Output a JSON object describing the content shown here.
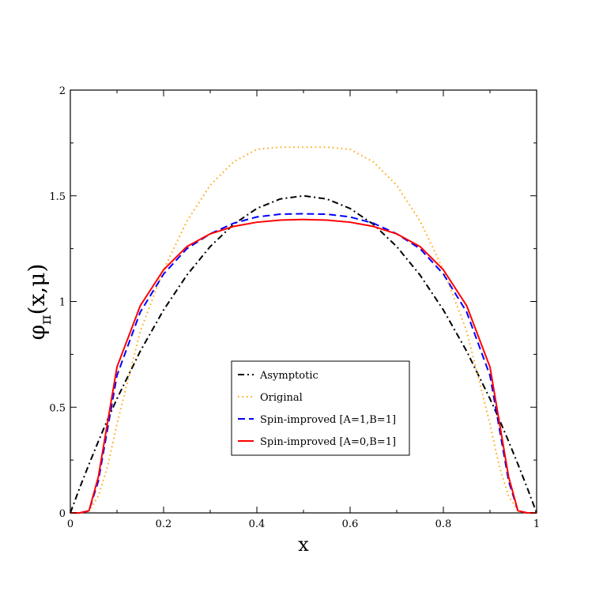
{
  "chart_data": {
    "type": "line",
    "xlabel": "x",
    "ylabel": {
      "main": "φ",
      "sub": "π",
      "rest": "(x,μ)"
    },
    "xlim": [
      0,
      1
    ],
    "ylim": [
      0,
      2
    ],
    "xticks": [
      0,
      0.2,
      0.4,
      0.6,
      0.8,
      1
    ],
    "xtick_labels": [
      "0",
      "0.2",
      "0.4",
      "0.6",
      "0.8",
      "1"
    ],
    "yticks": [
      0,
      0.5,
      1,
      1.5,
      2
    ],
    "ytick_labels": [
      "0",
      "0.5",
      "1",
      "1.5",
      "2"
    ],
    "grid": false,
    "legend_position": "center-bottom",
    "x": [
      0,
      0.02,
      0.04,
      0.06,
      0.08,
      0.1,
      0.15,
      0.2,
      0.25,
      0.3,
      0.35,
      0.4,
      0.45,
      0.5,
      0.55,
      0.6,
      0.65,
      0.7,
      0.75,
      0.8,
      0.85,
      0.9,
      0.92,
      0.94,
      0.96,
      0.98,
      1
    ],
    "series": [
      {
        "name": "Asymptotic",
        "color": "#000000",
        "dash": "dashdot",
        "values": [
          0,
          0.118,
          0.23,
          0.338,
          0.442,
          0.54,
          0.765,
          0.96,
          1.125,
          1.26,
          1.365,
          1.44,
          1.485,
          1.5,
          1.485,
          1.44,
          1.365,
          1.26,
          1.125,
          0.96,
          0.765,
          0.54,
          0.442,
          0.338,
          0.23,
          0.118,
          0
        ]
      },
      {
        "name": "Original",
        "color": "#ffa500",
        "dash": "dotted",
        "values": [
          0,
          0,
          0.01,
          0.08,
          0.22,
          0.42,
          0.86,
          1.15,
          1.38,
          1.55,
          1.66,
          1.72,
          1.73,
          1.73,
          1.73,
          1.72,
          1.66,
          1.55,
          1.38,
          1.15,
          0.86,
          0.42,
          0.22,
          0.08,
          0.01,
          0,
          0
        ]
      },
      {
        "name": "Spin-improved [A=1,B=1]",
        "color": "#0000ff",
        "dash": "dashed",
        "values": [
          0,
          0,
          0.01,
          0.15,
          0.4,
          0.65,
          0.95,
          1.13,
          1.25,
          1.32,
          1.37,
          1.4,
          1.413,
          1.415,
          1.413,
          1.4,
          1.37,
          1.32,
          1.25,
          1.13,
          0.95,
          0.65,
          0.4,
          0.15,
          0.01,
          0,
          0
        ]
      },
      {
        "name": "Spin-improved [A=0,B=1]",
        "color": "#ff0000",
        "dash": "solid",
        "values": [
          0,
          0,
          0.01,
          0.17,
          0.43,
          0.69,
          0.98,
          1.15,
          1.26,
          1.32,
          1.355,
          1.375,
          1.385,
          1.388,
          1.385,
          1.375,
          1.355,
          1.32,
          1.26,
          1.15,
          0.98,
          0.69,
          0.43,
          0.17,
          0.01,
          0,
          0
        ]
      }
    ]
  }
}
